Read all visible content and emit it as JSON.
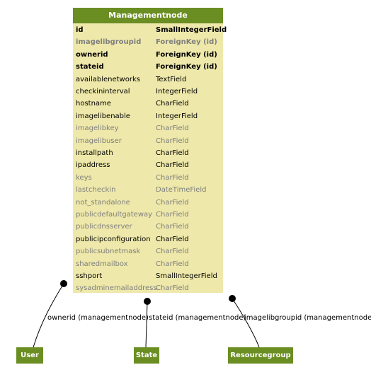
{
  "model": {
    "title": "Managementnode",
    "fields": [
      {
        "name": "id",
        "type": "SmallIntegerField",
        "style": "bold"
      },
      {
        "name": "imagelibgroupid",
        "type": "ForeignKey (id)",
        "style": "grey-bold"
      },
      {
        "name": "ownerid",
        "type": "ForeignKey (id)",
        "style": "bold"
      },
      {
        "name": "stateid",
        "type": "ForeignKey (id)",
        "style": "bold"
      },
      {
        "name": "availablenetworks",
        "type": "TextField",
        "style": "normal"
      },
      {
        "name": "checkininterval",
        "type": "IntegerField",
        "style": "normal"
      },
      {
        "name": "hostname",
        "type": "CharField",
        "style": "normal"
      },
      {
        "name": "imagelibenable",
        "type": "IntegerField",
        "style": "normal"
      },
      {
        "name": "imagelibkey",
        "type": "CharField",
        "style": "grey"
      },
      {
        "name": "imagelibuser",
        "type": "CharField",
        "style": "grey"
      },
      {
        "name": "installpath",
        "type": "CharField",
        "style": "normal"
      },
      {
        "name": "ipaddress",
        "type": "CharField",
        "style": "normal"
      },
      {
        "name": "keys",
        "type": "CharField",
        "style": "grey"
      },
      {
        "name": "lastcheckin",
        "type": "DateTimeField",
        "style": "grey"
      },
      {
        "name": "not_standalone",
        "type": "CharField",
        "style": "grey"
      },
      {
        "name": "publicdefaultgateway",
        "type": "CharField",
        "style": "grey"
      },
      {
        "name": "publicdnsserver",
        "type": "CharField",
        "style": "grey"
      },
      {
        "name": "publicipconfiguration",
        "type": "CharField",
        "style": "normal"
      },
      {
        "name": "publicsubnetmask",
        "type": "CharField",
        "style": "grey"
      },
      {
        "name": "sharedmailbox",
        "type": "CharField",
        "style": "grey"
      },
      {
        "name": "sshport",
        "type": "SmallIntegerField",
        "style": "normal"
      },
      {
        "name": "sysadminemailaddress",
        "type": "CharField",
        "style": "grey"
      }
    ]
  },
  "related": {
    "user": "User",
    "state": "State",
    "resourcegroup": "Resourcegroup"
  },
  "edges": {
    "ownerid": "ownerid (managementnode)",
    "stateid": "stateid (managementnode)",
    "imagelibgroupid": "imagelibgroupid (managementnode)"
  },
  "colors": {
    "header": "#6b8e23",
    "table_bg": "#eee8aa",
    "grey_text": "#7f7f7f"
  }
}
